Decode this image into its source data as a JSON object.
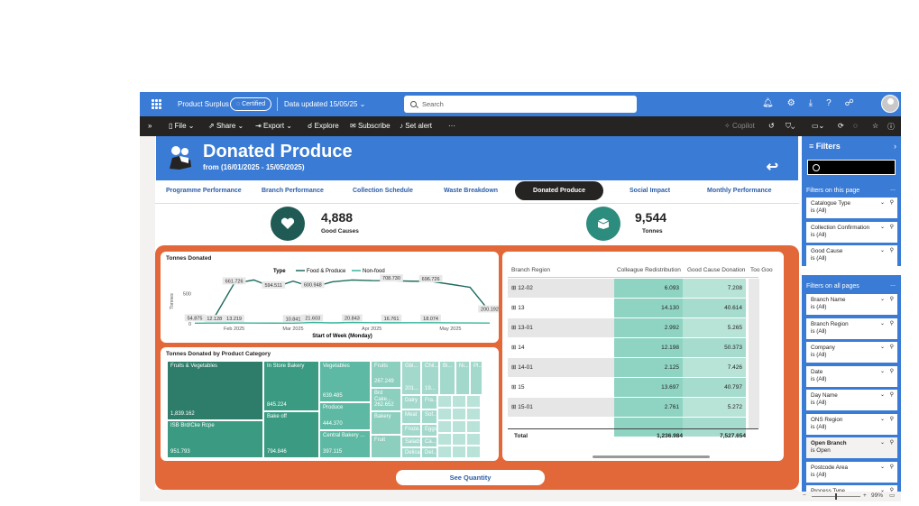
{
  "topbar": {
    "title": "Product Surplus",
    "certified": "Certified",
    "data_updated": "Data updated 15/05/25",
    "search_placeholder": "Search"
  },
  "toolbar": {
    "file": "File",
    "share": "Share",
    "export": "Export",
    "explore": "Explore",
    "subscribe": "Subscribe",
    "set_alert": "Set alert",
    "more": "···",
    "copilot": "Copilot"
  },
  "header": {
    "title": "Donated Produce",
    "subtitle": "from (16/01/2025 - 15/05/2025)"
  },
  "tabs": [
    {
      "label": "Programme Performance"
    },
    {
      "label": "Branch Performance"
    },
    {
      "label": "Collection Schedule"
    },
    {
      "label": "Waste Breakdown"
    },
    {
      "label": "Donated Produce"
    },
    {
      "label": "Social Impact"
    },
    {
      "label": "Monthly Performance"
    }
  ],
  "kpis": [
    {
      "value": "4,888",
      "label": "Good Causes",
      "color": "#1f5b54"
    },
    {
      "value": "9,544",
      "label": "Tonnes",
      "color": "#2c8c7d"
    }
  ],
  "chart_data": {
    "type": "line",
    "title": "Tonnes Donated",
    "legend_title": "Type",
    "xlabel": "Start of Week (Monday)",
    "ylabel": "Tonnes",
    "x_ticks": [
      "Feb 2025",
      "Mar 2025",
      "Apr 2025",
      "May 2025"
    ],
    "y_ticks": [
      0,
      500
    ],
    "ylim": [
      0,
      800
    ],
    "series": [
      {
        "name": "Food & Produce",
        "color": "#1e6b5e",
        "values": [
          54.875,
          110,
          661.726,
          720,
          594.511,
          700,
          600.948,
          690,
          720,
          710,
          708.73,
          700,
          696.726,
          650,
          600,
          200.192
        ],
        "labels": [
          "54.875",
          "",
          "661.726",
          "",
          "594.511",
          "",
          "600.948",
          "",
          "",
          "",
          "708.730",
          "",
          "696.726",
          "",
          "",
          "200.192"
        ]
      },
      {
        "name": "Non-food",
        "color": "#3ab59c",
        "values": [
          10,
          12.128,
          13.219,
          12,
          11,
          10.841,
          21.603,
          15,
          20.843,
          18,
          16.761,
          17,
          18.074,
          15,
          14,
          12
        ],
        "labels": [
          "",
          "12.128",
          "13.219",
          "",
          "",
          "10.841",
          "21.603",
          "",
          "20.843",
          "",
          "16.761",
          "",
          "18.074",
          "",
          "",
          ""
        ]
      }
    ]
  },
  "treemap": {
    "title": "Tonnes Donated by Product Category",
    "items": [
      {
        "label": "Fruits & Vegetables",
        "value": "1,839.162"
      },
      {
        "label": "ISB Brd/Cke Rcpe",
        "value": "951.793"
      },
      {
        "label": "In Store Bakery",
        "value": "845.224"
      },
      {
        "label": "Bake off",
        "value": "794.846"
      },
      {
        "label": "Vegetables",
        "value": "639.485"
      },
      {
        "label": "Produce",
        "value": "444.370"
      },
      {
        "label": "Central Bakery ...",
        "value": "397.115"
      },
      {
        "label": "Fruits",
        "value": "267.249"
      },
      {
        "label": "Brd Cake...",
        "value": "262.652"
      },
      {
        "label": "Bakery",
        "value": ""
      },
      {
        "label": "Fruit",
        "value": ""
      },
      {
        "label": "Gbi...",
        "value": "201..."
      },
      {
        "label": "Chil...",
        "value": "19..."
      },
      {
        "label": "Bi...",
        "value": ""
      },
      {
        "label": "Ni...",
        "value": ""
      },
      {
        "label": "Pl...",
        "value": ""
      },
      {
        "label": "Dairy",
        "value": ""
      },
      {
        "label": "Fra...",
        "value": ""
      },
      {
        "label": "Meat",
        "value": ""
      },
      {
        "label": "Sof...",
        "value": ""
      },
      {
        "label": "Froze...",
        "value": ""
      },
      {
        "label": "Eggs",
        "value": ""
      },
      {
        "label": "Salads",
        "value": ""
      },
      {
        "label": "Ca...",
        "value": ""
      },
      {
        "label": "Delica...",
        "value": ""
      },
      {
        "label": "Del...",
        "value": ""
      }
    ]
  },
  "table": {
    "headers": [
      "Branch Region",
      "Colleague Redistribution",
      "Good Cause Donation",
      "Too Goo"
    ],
    "rows": [
      {
        "region": "12-02",
        "colleague": "6.093",
        "good": "7.208"
      },
      {
        "region": "13",
        "colleague": "14.130",
        "good": "40.614"
      },
      {
        "region": "13-01",
        "colleague": "2.992",
        "good": "5.265"
      },
      {
        "region": "14",
        "colleague": "12.198",
        "good": "50.373"
      },
      {
        "region": "14-01",
        "colleague": "2.125",
        "good": "7.426"
      },
      {
        "region": "15",
        "colleague": "13.697",
        "good": "40.797"
      },
      {
        "region": "15-01",
        "colleague": "2.761",
        "good": "5.272"
      },
      {
        "region": "",
        "colleague": "",
        "good": ""
      }
    ],
    "total_label": "Total",
    "total_colleague": "1,236.984",
    "total_good": "7,527.654"
  },
  "see_quantity": "See Quantity",
  "filters": {
    "title": "Filters",
    "on_page_label": "Filters on this page",
    "on_all_label": "Filters on all pages",
    "more": "...",
    "page_filters": [
      {
        "name": "Catalogue Type",
        "value": "is (All)"
      },
      {
        "name": "Collection Confirmation",
        "value": "is (All)"
      },
      {
        "name": "Good Cause",
        "value": "is (All)"
      }
    ],
    "all_filters": [
      {
        "name": "Branch Name",
        "value": "is (All)"
      },
      {
        "name": "Branch Region",
        "value": "is (All)"
      },
      {
        "name": "Company",
        "value": "is (All)"
      },
      {
        "name": "Date",
        "value": "is (All)"
      },
      {
        "name": "Day Name",
        "value": "is (All)"
      },
      {
        "name": "ONS Region",
        "value": "is (All)"
      },
      {
        "name": "Open Branch",
        "value": "is Open"
      },
      {
        "name": "Postcode Area",
        "value": "is (All)"
      },
      {
        "name": "Process Type",
        "value": ""
      }
    ]
  },
  "zoom": {
    "value": "99%"
  }
}
